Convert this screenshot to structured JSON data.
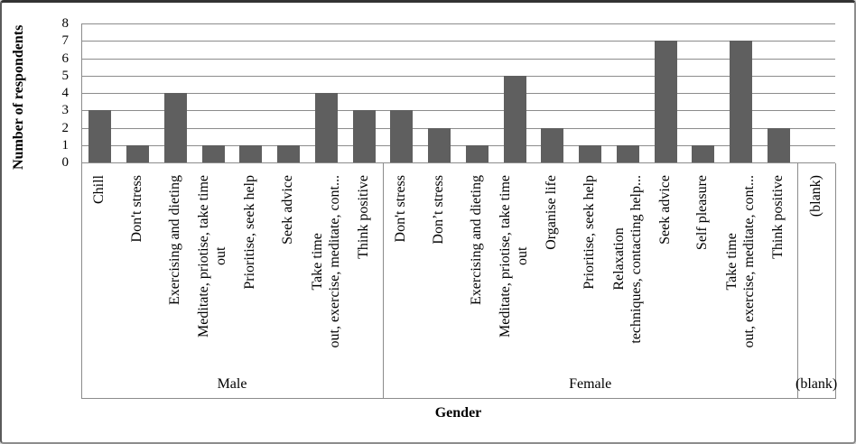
{
  "chart_data": {
    "type": "bar",
    "title": "",
    "xlabel": "Gender",
    "ylabel": "Number of respondents",
    "ylim": [
      0,
      8
    ],
    "yticks": [
      0,
      1,
      2,
      3,
      4,
      5,
      6,
      7,
      8
    ],
    "grid": "horizontal",
    "legend": "none",
    "bar_color": "#5f5f5f",
    "gridline_color": "#8c8c8c",
    "groups": [
      {
        "label": "Male",
        "categories": [
          "Chill",
          "Don't stress",
          "Exercising and dieting",
          "Meditate, priotise, take time\nout",
          "Prioritise, seek help",
          "Seek advice",
          "Take time\nout, exercise, meditate, cont...",
          "Think positive"
        ],
        "values": [
          3,
          1,
          4,
          1,
          1,
          1,
          4,
          3
        ]
      },
      {
        "label": "Female",
        "categories": [
          "Don't stress",
          "Don’t stress",
          "Exercising and dieting",
          "Meditate, priotise, take time\nout",
          "Organise life",
          "Prioritise, seek help",
          "Relaxation\ntechniques, contacting help...",
          "Seek advice",
          "Self pleasure",
          "Take time\nout, exercise, meditate, cont...",
          "Think positive"
        ],
        "values": [
          3,
          2,
          1,
          5,
          2,
          1,
          1,
          7,
          1,
          7,
          2
        ]
      },
      {
        "label": "(blank)",
        "categories": [
          "(blank)"
        ],
        "values": [
          0
        ]
      }
    ]
  }
}
